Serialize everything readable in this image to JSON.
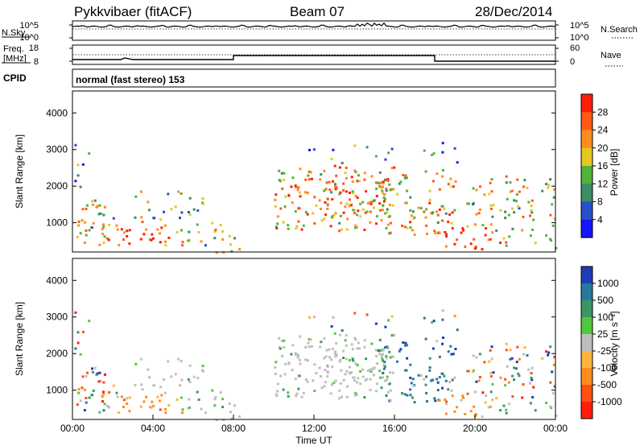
{
  "header": {
    "station": "Pykkvibaer (fitACF)",
    "beam": "Beam 07",
    "date": "28/Dec/2014"
  },
  "top_panels": {
    "nsky_label": "N.Sky",
    "nsearch_label": "N.Search",
    "nsky_ticks": [
      "10^5",
      "10^0"
    ],
    "nsearch_ticks": [
      "10^5",
      "10^0"
    ],
    "freq_label_1": "Freq.",
    "freq_label_2": "[MHz]",
    "freq_ticks": [
      "18",
      "8"
    ],
    "nave_label": "Nave",
    "nave_ticks": [
      "60",
      "0"
    ],
    "cpid_label": "CPID",
    "cpid_text": "normal (fast stereo) 153"
  },
  "chart_data": [
    {
      "type": "heatmap",
      "panel": "power",
      "ylabel": "Slant Range [km]",
      "ylim": [
        200,
        4600
      ],
      "yticks": [
        "1000",
        "2000",
        "3000",
        "4000"
      ],
      "colorbar_label": "Power [dB]",
      "colorbar_ticks": [
        "4",
        "8",
        "12",
        "16",
        "20",
        "24",
        "28"
      ],
      "colors": [
        "#1414ff",
        "#2850c8",
        "#3c8c64",
        "#50b43c",
        "#e6c81e",
        "#ff8c1e",
        "#ff5a14",
        "#ff1e0a"
      ]
    },
    {
      "type": "heatmap",
      "panel": "velocity",
      "ylabel": "Slant Range [km]",
      "ylim": [
        200,
        4600
      ],
      "yticks": [
        "1000",
        "2000",
        "3000",
        "4000"
      ],
      "xlabel": "Time UT",
      "xticks": [
        "00:00",
        "04:00",
        "08:00",
        "12:00",
        "16:00",
        "20:00",
        "00:00"
      ],
      "colorbar_label": "Velocity [m s⁻¹]",
      "colorbar_ticks": [
        "1000",
        "500",
        "100",
        "25",
        "-25",
        "-100",
        "-500",
        "-1000"
      ],
      "colors": [
        "#1e3cb4",
        "#2878a0",
        "#3c9664",
        "#50c83c",
        "#bebebe",
        "#ffb43c",
        "#ff8c1e",
        "#ff5014",
        "#ff1e0a"
      ]
    }
  ]
}
